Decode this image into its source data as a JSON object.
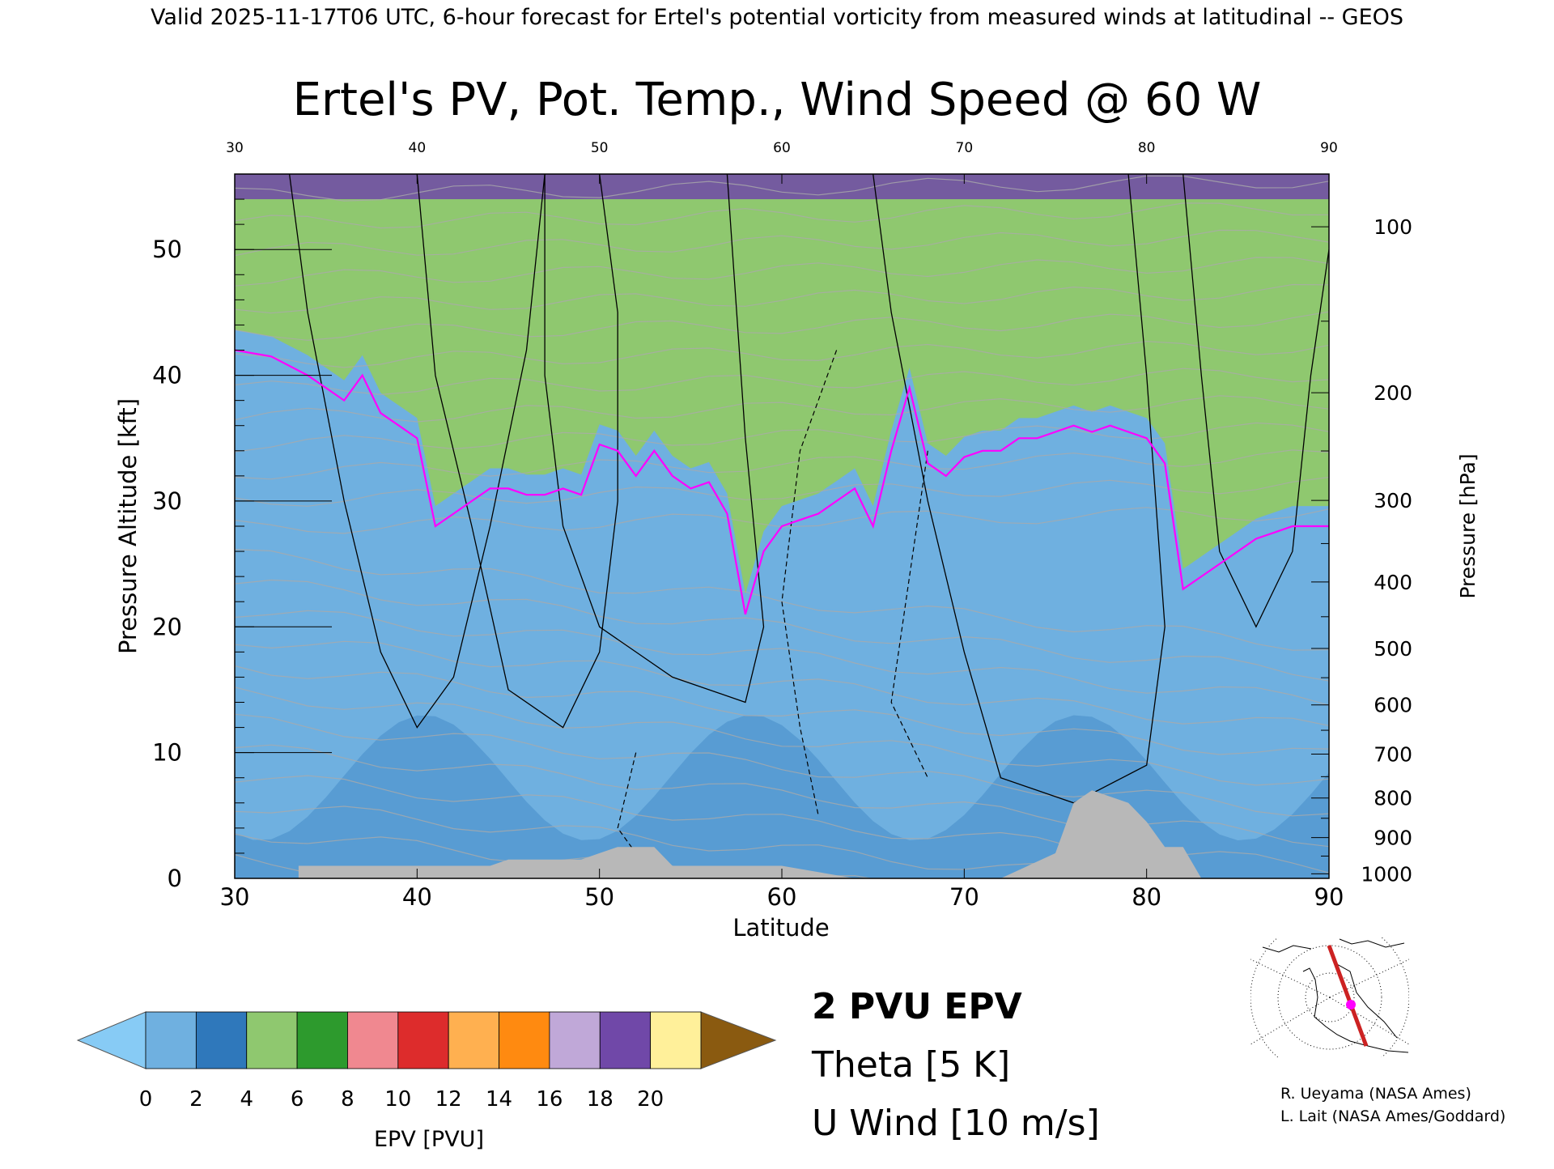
{
  "header": {
    "valid_line": "Valid 2025-11-17T06 UTC, 6-hour forecast for Ertel's potential vorticity from measured winds at latitudinal -- GEOS"
  },
  "chart_data": {
    "type": "heatmap",
    "title": "Ertel's PV, Pot. Temp., Wind Speed @ 60 W",
    "xlabel": "Latitude",
    "ylabel_left": "Pressure Altitude [kft]",
    "ylabel_right": "Pressure [hPa]",
    "xlim": [
      30,
      90
    ],
    "ylim_kft": [
      0,
      56
    ],
    "x_ticks": [
      30,
      40,
      50,
      60,
      70,
      80,
      90
    ],
    "x_tick_labels": [
      "30",
      "40",
      "50",
      "60",
      "70",
      "80",
      "90"
    ],
    "y_ticks_kft": [
      0,
      10,
      20,
      30,
      40,
      50
    ],
    "y_tick_labels": [
      "0",
      "10",
      "20",
      "30",
      "40",
      "50"
    ],
    "pressure_levels_hpa": [
      1000,
      900,
      800,
      700,
      600,
      500,
      400,
      300,
      200,
      100
    ],
    "pressure_tick_labels": [
      "1000",
      "900",
      "800",
      "700",
      "600",
      "500",
      "400",
      "300",
      "200",
      "100"
    ],
    "tropopause_2pvu_kft": {
      "lat": [
        30,
        32,
        34,
        36,
        37,
        38,
        39,
        40,
        41,
        42,
        43,
        44,
        45,
        46,
        47,
        48,
        49,
        50,
        51,
        52,
        53,
        54,
        55,
        56,
        57,
        58,
        59,
        60,
        61,
        62,
        63,
        64,
        65,
        66,
        67,
        68,
        69,
        70,
        71,
        72,
        73,
        74,
        75,
        76,
        77,
        78,
        79,
        80,
        81,
        82,
        83,
        84,
        85,
        86,
        87,
        88,
        89,
        90
      ],
      "alt": [
        42,
        41.5,
        40,
        38,
        40,
        37,
        36,
        35,
        28,
        29,
        30,
        31,
        31,
        30.5,
        30.5,
        31,
        30.5,
        34.5,
        34,
        32,
        34,
        32,
        31,
        31.5,
        29,
        21,
        26,
        28,
        28.5,
        29,
        30,
        31,
        28,
        34,
        39,
        33,
        32,
        33.5,
        34,
        34,
        35,
        35,
        35.5,
        36,
        35.5,
        36,
        35.5,
        35,
        33,
        23,
        24,
        25,
        26,
        27,
        27.5,
        28,
        28,
        28
      ]
    },
    "terrain_kft": {
      "lat": [
        33.5,
        36,
        40,
        44,
        45,
        48,
        49,
        50,
        51,
        53,
        54,
        56,
        60,
        64,
        72,
        75,
        76,
        77,
        79,
        80,
        81,
        82,
        83
      ],
      "alt": [
        1,
        1,
        1,
        1,
        1.5,
        1.5,
        1.5,
        2,
        2.5,
        2.5,
        1,
        1,
        1,
        0,
        0,
        2,
        6,
        7,
        6,
        4.5,
        2.5,
        2.5,
        0
      ]
    },
    "colorbar": {
      "label": "EPV [PVU]",
      "ticks": [
        0,
        2,
        4,
        6,
        8,
        10,
        12,
        14,
        16,
        18,
        20
      ],
      "tick_labels": [
        "0",
        "2",
        "4",
        "6",
        "8",
        "10",
        "12",
        "14",
        "16",
        "18",
        "20"
      ],
      "colors": [
        "#6fb0e0",
        "#2f78bb",
        "#8fc86f",
        "#2d9a2d",
        "#f08890",
        "#dd2c2c",
        "#ffb050",
        "#ff8a10",
        "#c0a8d8",
        "#7048a8",
        "#fff09a"
      ],
      "under_color": "#87cbf5",
      "over_color": "#8a5a10"
    }
  },
  "legend": {
    "pv_line": "2 PVU EPV",
    "theta": "Theta [5 K]",
    "uwind": "U Wind [10 m/s]"
  },
  "credits": {
    "line1": "R. Ueyama (NASA Ames)",
    "line2": "L. Lait (NASA Ames/Goddard)"
  },
  "colors": {
    "pv_contour": "#ff00ff",
    "theta_contour": "#aaaaaa",
    "terrain": "#b8b8b8",
    "map_section_line": "#cc2222",
    "map_marker": "#ff00ff"
  }
}
